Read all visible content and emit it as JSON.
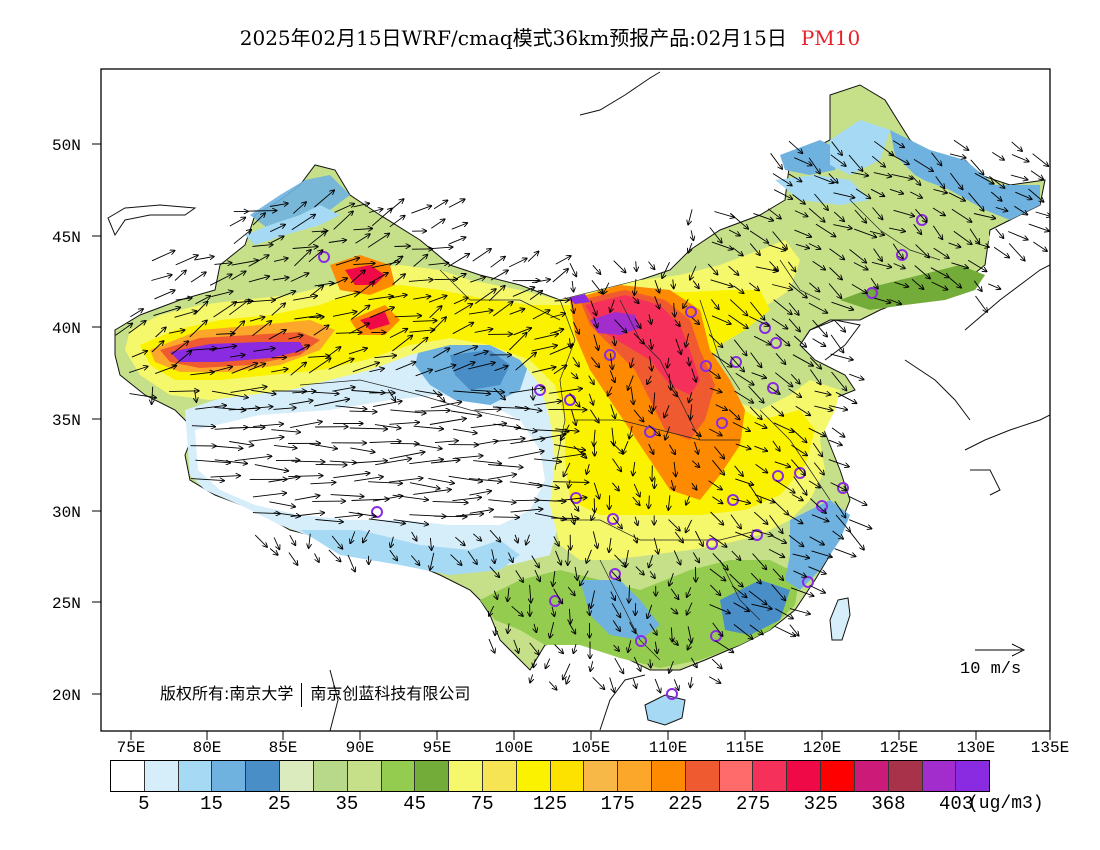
{
  "title": {
    "main": "2025年02月15日WRF/cmaq模式36km预报产品:02月15日",
    "variable": "PM10"
  },
  "map": {
    "lat_labels": [
      "50N",
      "45N",
      "40N",
      "35N",
      "30N",
      "25N",
      "20N"
    ],
    "lon_labels": [
      "75E",
      "80E",
      "85E",
      "90E",
      "95E",
      "100E",
      "105E",
      "110E",
      "115E",
      "120E",
      "125E",
      "130E",
      "135E"
    ],
    "copyright": "版权所有:南京大学",
    "copyright_2": "南京创蓝科技有限公司",
    "wind_reference": "10 m/s"
  },
  "legend": {
    "colors": [
      "#ffffff",
      "#d6eefa",
      "#a6daf4",
      "#6fb2e0",
      "#4a8ec8",
      "#dcebbd",
      "#b9d98a",
      "#c6e08a",
      "#94cc4f",
      "#74ac3a",
      "#f4f86a",
      "#f6e454",
      "#fbf200",
      "#fde200",
      "#f8b848",
      "#fca62a",
      "#fd8a00",
      "#ef5a30",
      "#ff6a6a",
      "#f5305a",
      "#ef0a47",
      "#fe0000",
      "#cc1a78",
      "#a8324a",
      "#a22ccc",
      "#8a2be2"
    ],
    "labels": [
      "5",
      "15",
      "25",
      "35",
      "45",
      "75",
      "125",
      "175",
      "225",
      "275",
      "325",
      "368",
      "403"
    ],
    "unit": "(ug/m3)"
  }
}
